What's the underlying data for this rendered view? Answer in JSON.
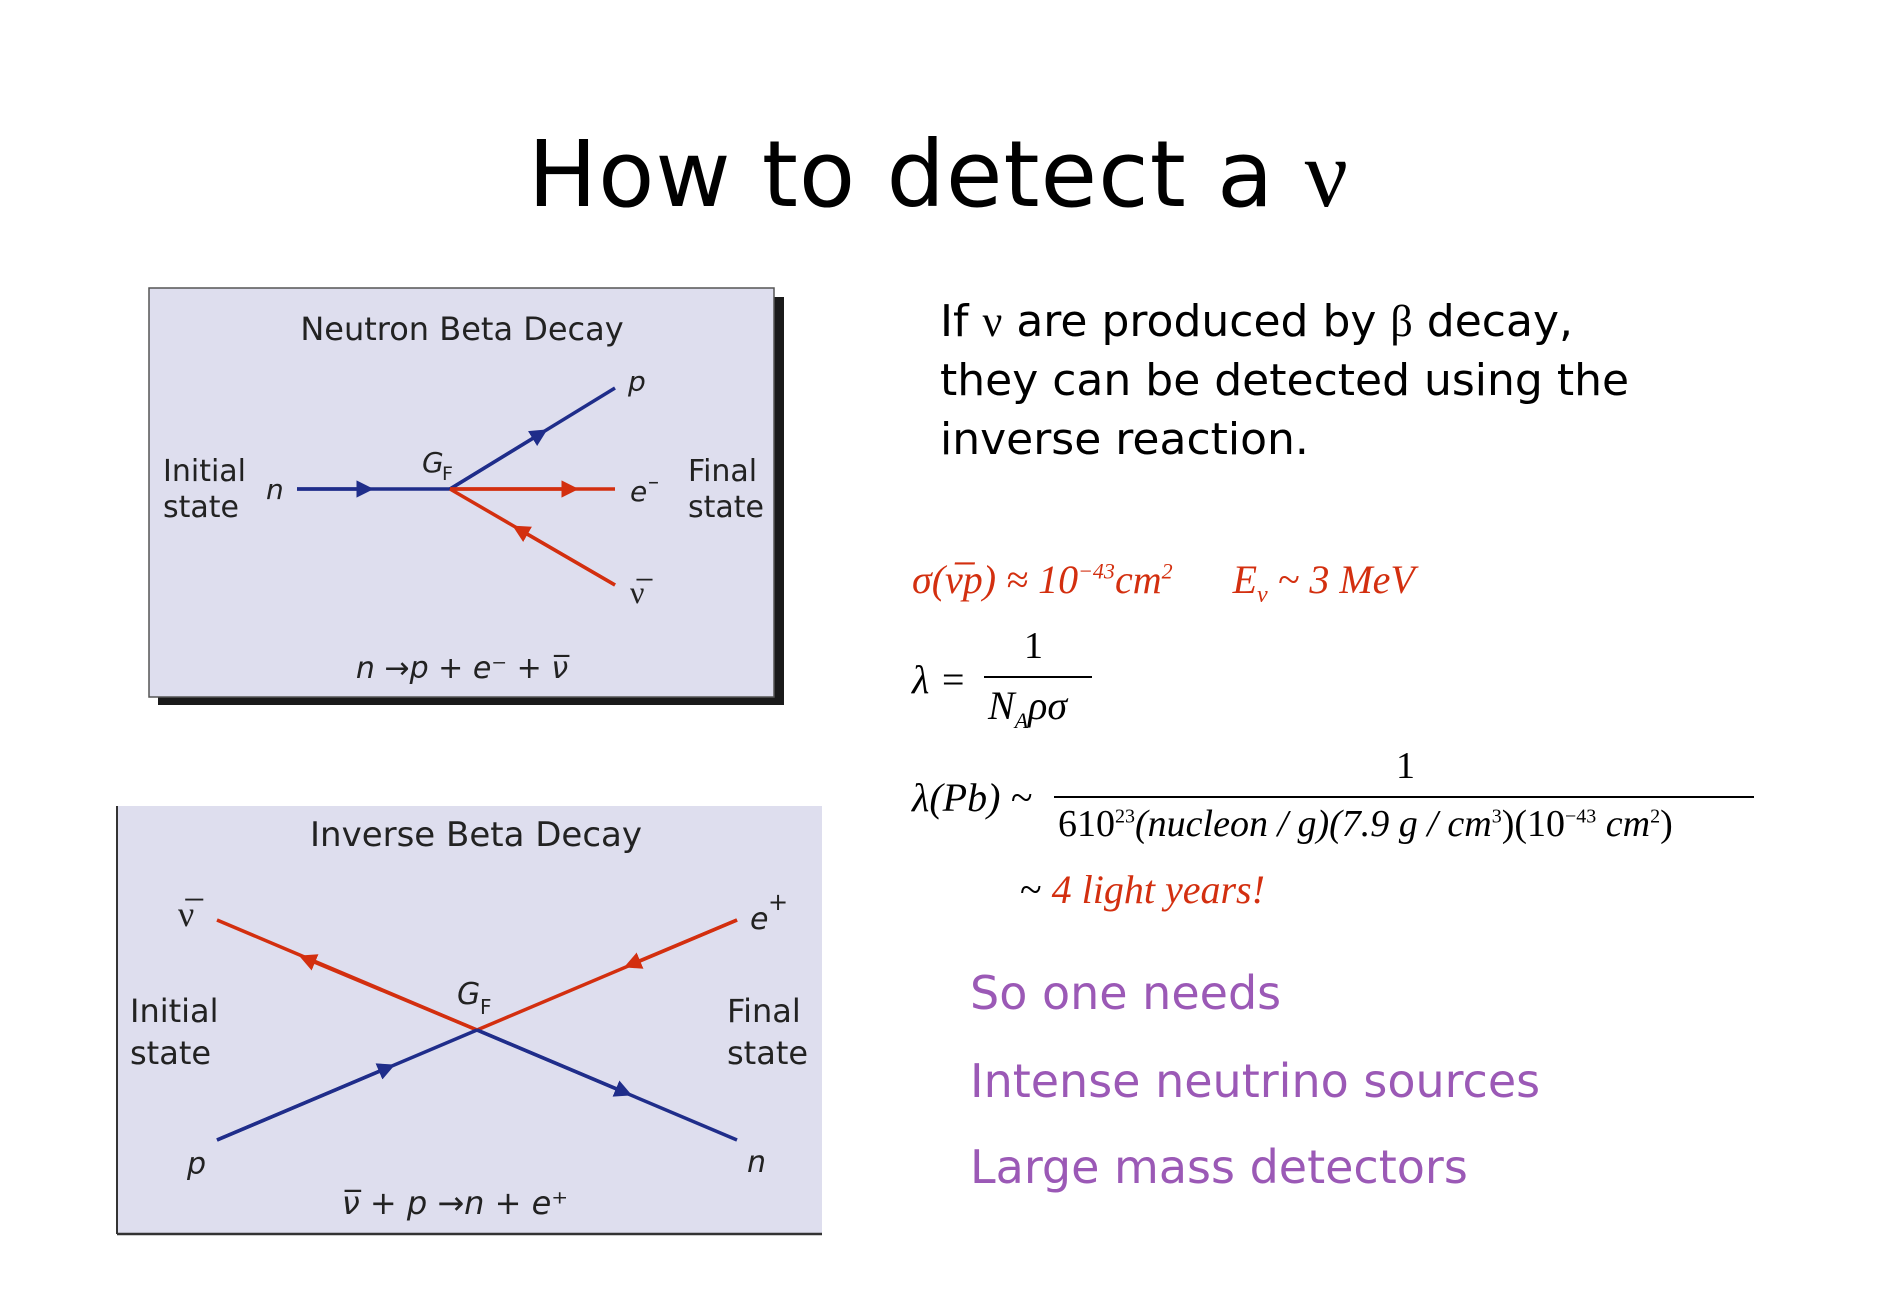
{
  "title": {
    "text": "How to detect a",
    "nu": "ν"
  },
  "intro": {
    "line1_a": "If ",
    "line1_nu": "ν",
    "line1_b": " are produced by ",
    "line1_beta": "β",
    "line1_c": " decay,",
    "line2": "they can be detected using the",
    "line3": "inverse reaction."
  },
  "colors": {
    "red": "#d32f0f",
    "blue": "#1f2d8a",
    "purple": "#9b59b6",
    "panel_bg": "#dedeee"
  },
  "panel1": {
    "title": "Neutron Beta Decay",
    "initial_1": "Initial",
    "initial_2": "state",
    "final_1": "Final",
    "final_2": "state",
    "n": "n",
    "p": "p",
    "e": "e",
    "e_sup": "–",
    "nubar": "ν̅",
    "gf": "G",
    "gf_sub": "F",
    "reaction": "n →p + e⁻ + ν̅"
  },
  "panel2": {
    "title": "Inverse Beta Decay",
    "initial_1": "Initial",
    "initial_2": "state",
    "final_1": "Final",
    "final_2": "state",
    "nubar": "ν̅",
    "p": "p",
    "n": "n",
    "e": "e",
    "e_sup": "+",
    "gf": "G",
    "gf_sub": "F",
    "reaction": "ν̅ + p →n + e⁺"
  },
  "equations": {
    "sigma": "σ(ν̅p) ≈ 10",
    "sigma_exp": "−43",
    "sigma_unit": "cm",
    "sigma_unit_exp": "2",
    "energy": "E",
    "energy_sub": "ν",
    "energy_val": " ~ 3 MeV",
    "lambda_lhs": "λ =",
    "lambda_num": "1",
    "lambda_den_a": "N",
    "lambda_den_sub": "A",
    "lambda_den_b": "ρσ",
    "pb_lhs": "λ(Pb) ~",
    "pb_num": "1",
    "pb_den_1": "610",
    "pb_den_1_exp": "23",
    "pb_den_2": "(nucleon / g)(7.9 g / cm",
    "pb_den_2_exp": "3",
    "pb_den_3": ")(10",
    "pb_den_3_exp": "−43",
    "pb_den_4": " cm",
    "pb_den_4_exp": "2",
    "pb_den_5": ")",
    "result_tilde": "~",
    "result": "4 light years!"
  },
  "needs": {
    "line1": "So one needs",
    "line2": "Intense neutrino sources",
    "line3": "Large mass detectors"
  }
}
